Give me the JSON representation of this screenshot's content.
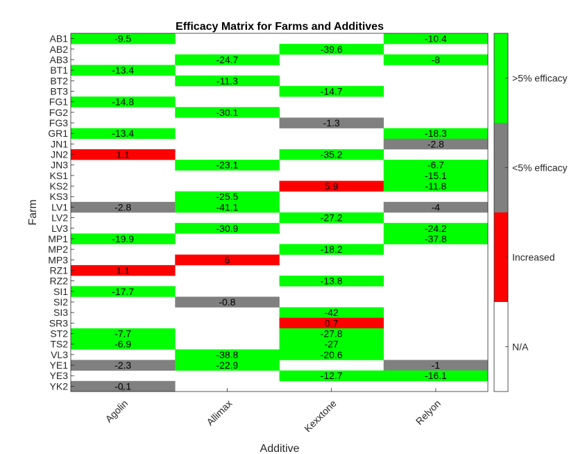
{
  "chart_data": {
    "type": "heatmap",
    "title": "Efficacy Matrix for Farms and Additives",
    "xlabel": "Additive",
    "ylabel": "Farm",
    "columns": [
      "Agolin",
      "Allimax",
      "Kexxtone",
      "Relyon"
    ],
    "rows": [
      "AB1",
      "AB2",
      "AB3",
      "BT1",
      "BT2",
      "BT3",
      "FG1",
      "FG2",
      "FG3",
      "GR1",
      "JN1",
      "JN2",
      "JN3",
      "KS1",
      "KS2",
      "KS3",
      "LV1",
      "LV2",
      "LV3",
      "MP1",
      "MP2",
      "MP3",
      "RZ1",
      "RZ2",
      "SI1",
      "SI2",
      "SI3",
      "SR3",
      "ST2",
      "TS2",
      "VL3",
      "YE1",
      "YE3",
      "YK2"
    ],
    "values": [
      [
        -9.5,
        null,
        null,
        -10.4
      ],
      [
        null,
        null,
        -39.6,
        null
      ],
      [
        null,
        -24.7,
        null,
        -8
      ],
      [
        -13.4,
        null,
        null,
        null
      ],
      [
        null,
        -11.3,
        null,
        null
      ],
      [
        null,
        null,
        -14.7,
        null
      ],
      [
        -14.8,
        null,
        null,
        null
      ],
      [
        null,
        -30.1,
        null,
        null
      ],
      [
        null,
        null,
        -1.3,
        null
      ],
      [
        -13.4,
        null,
        null,
        -18.3
      ],
      [
        null,
        null,
        null,
        -2.8
      ],
      [
        1.1,
        null,
        -35.2,
        null
      ],
      [
        null,
        -23.1,
        null,
        -6.7
      ],
      [
        null,
        null,
        null,
        -15.1
      ],
      [
        null,
        null,
        5.9,
        -11.8
      ],
      [
        null,
        -25.5,
        null,
        null
      ],
      [
        -2.8,
        -41.1,
        null,
        -4
      ],
      [
        null,
        null,
        -27.2,
        null
      ],
      [
        null,
        -30.9,
        null,
        -24.2
      ],
      [
        -19.9,
        null,
        null,
        -37.8
      ],
      [
        null,
        null,
        -18.2,
        null
      ],
      [
        null,
        6,
        null,
        null
      ],
      [
        1.1,
        null,
        null,
        null
      ],
      [
        null,
        null,
        -13.8,
        null
      ],
      [
        -17.7,
        null,
        null,
        null
      ],
      [
        null,
        -0.8,
        null,
        null
      ],
      [
        null,
        null,
        -42,
        null
      ],
      [
        null,
        null,
        0.7,
        null
      ],
      [
        -7.7,
        null,
        -27.8,
        null
      ],
      [
        -6.9,
        null,
        -27,
        null
      ],
      [
        null,
        -38.8,
        -20.6,
        null
      ],
      [
        -2.3,
        -22.9,
        null,
        -1
      ],
      [
        null,
        null,
        -12.7,
        -16.1
      ],
      [
        -0.1,
        null,
        null,
        null
      ]
    ],
    "categories_legend": [
      {
        "label": ">5% efficacy",
        "color": "#00ff00"
      },
      {
        "label": "<5% efficacy",
        "color": "#808080"
      },
      {
        "label": "Increased",
        "color": "#ff0000"
      },
      {
        "label": "N/A",
        "color": "#ffffff"
      }
    ],
    "legend_position": "right"
  }
}
